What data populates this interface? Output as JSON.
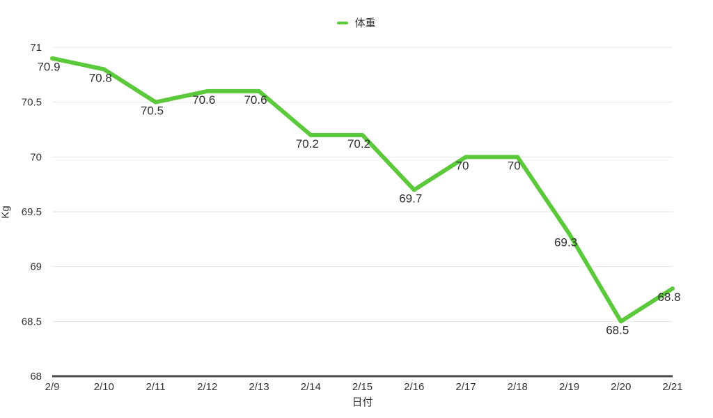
{
  "page": {
    "background_color": "#ffffff"
  },
  "chart_data": {
    "type": "line",
    "title": "",
    "x": [
      "2/9",
      "2/10",
      "2/11",
      "2/12",
      "2/13",
      "2/14",
      "2/15",
      "2/16",
      "2/17",
      "2/18",
      "2/19",
      "2/20",
      "2/21"
    ],
    "series": [
      {
        "name": "体重",
        "color": "#5BC93B",
        "values": [
          70.9,
          70.8,
          70.5,
          70.6,
          70.6,
          70.2,
          70.2,
          69.7,
          70,
          70,
          69.3,
          68.5,
          68.8
        ],
        "data_labels": [
          "70.9",
          "70.8",
          "70.5",
          "70.6",
          "70.6",
          "70.2",
          "70.2",
          "69.7",
          "70",
          "70",
          "69.3",
          "68.5",
          "68.8"
        ]
      }
    ],
    "xlabel": "日付",
    "ylabel": "Kg",
    "ylim": [
      68,
      71
    ],
    "yticks": [
      68,
      68.5,
      69,
      69.5,
      70,
      70.5,
      71
    ],
    "ytick_labels": [
      "68",
      "68.5",
      "69",
      "69.5",
      "70",
      "70.5",
      "71"
    ],
    "grid": true,
    "legend_position": "top-center",
    "colors": {
      "grid_line": "#E6E6E6",
      "axis_line": "#4A4A4A",
      "tick_text": "#333333",
      "data_label_text": "#2E2E2E"
    }
  }
}
